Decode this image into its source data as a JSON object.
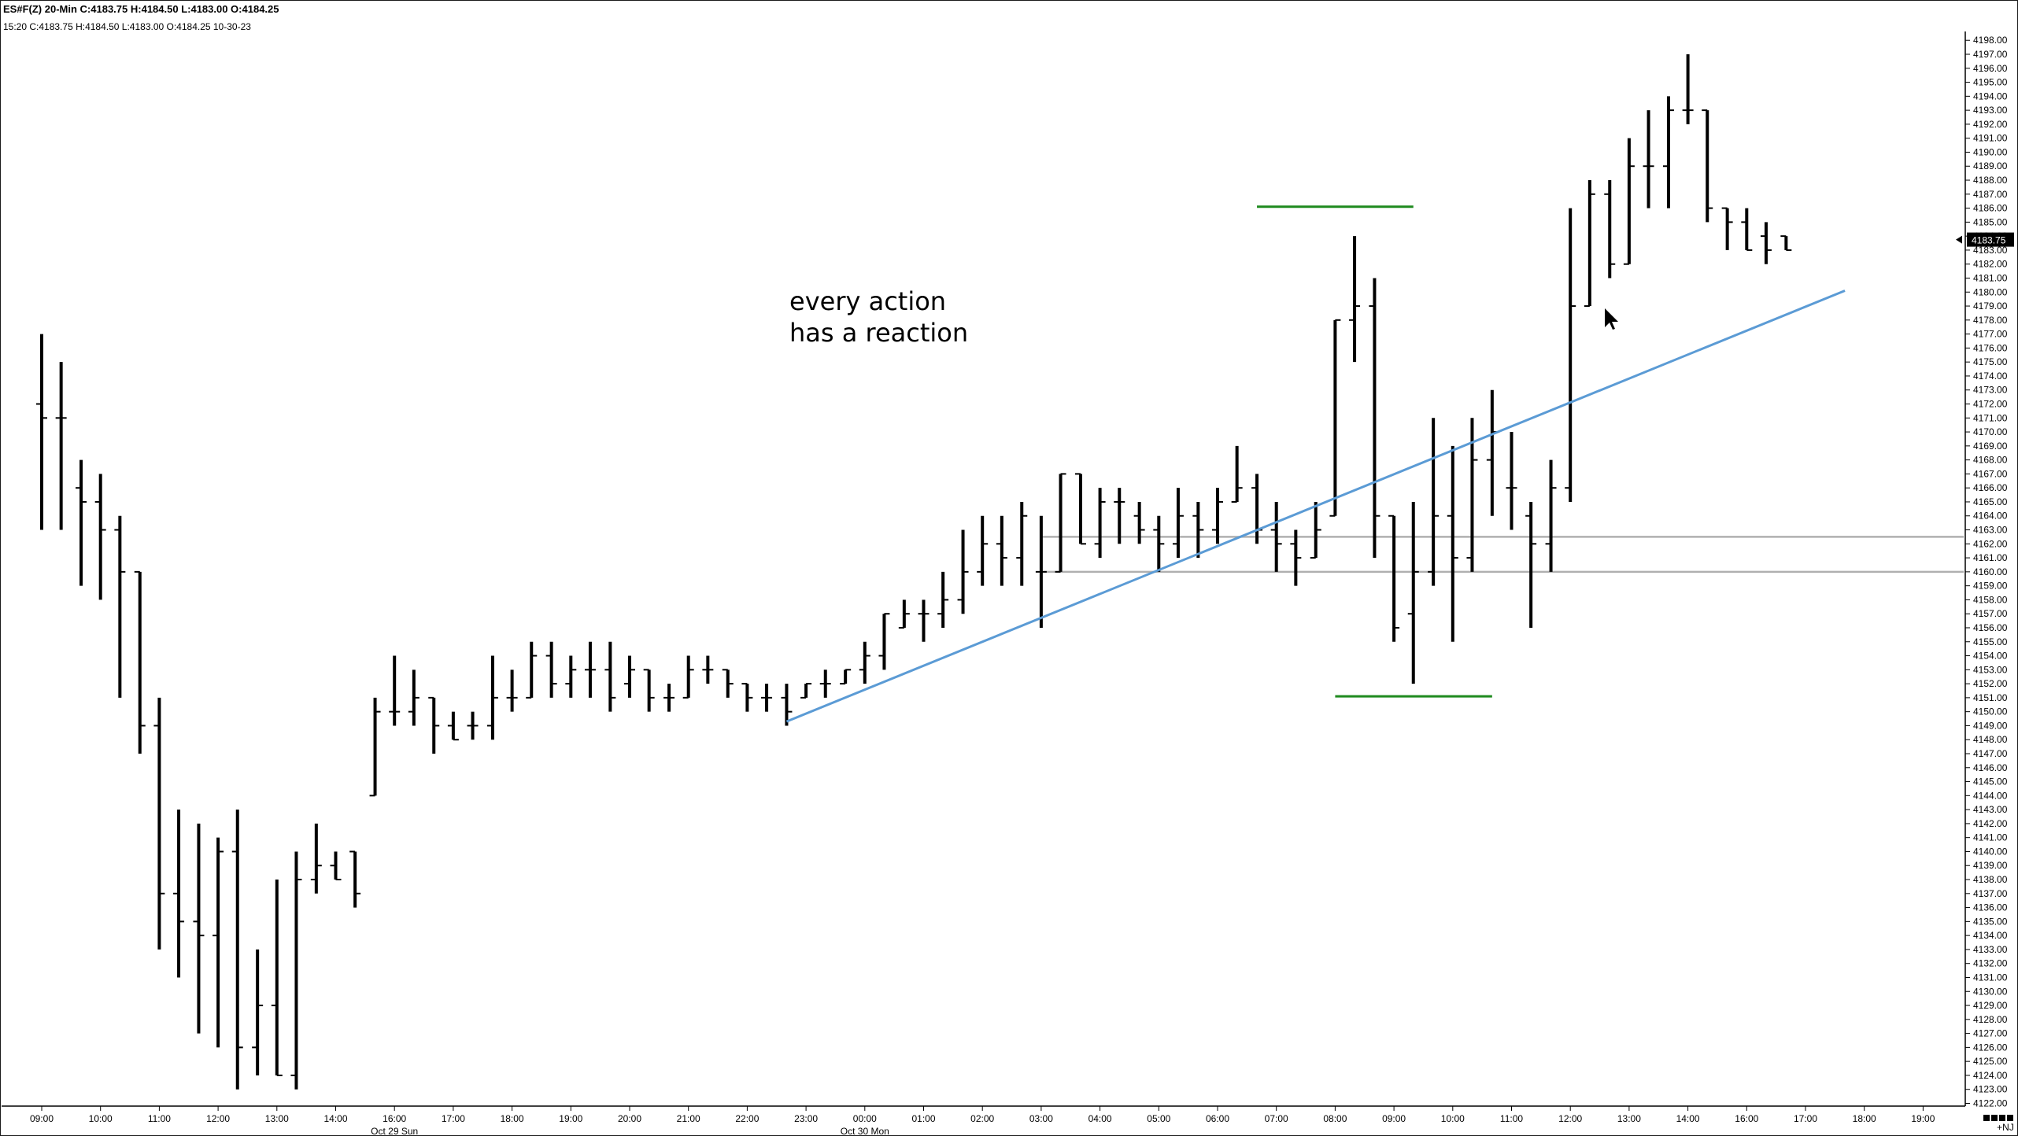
{
  "header": {
    "symbol": "ES#F(Z)",
    "interval": "20-Min",
    "summary": "C:4183.75  H:4184.50  L:4183.00  O:4184.25",
    "info": "15:20  C:4183.75  H:4184.50  L:4183.00  O:4184.25  10-30-23"
  },
  "chart_data": {
    "type": "ohlc",
    "ylim": [
      4122,
      4198
    ],
    "y_tick_step": 1,
    "current_price": "4183.75",
    "time_ticks": [
      "09:00",
      "10:00",
      "11:00",
      "12:00",
      "13:00",
      "14:00",
      "16:00",
      "17:00",
      "18:00",
      "19:00",
      "20:00",
      "21:00",
      "22:00",
      "23:00",
      "00:00",
      "01:00",
      "02:00",
      "03:00",
      "04:00",
      "05:00",
      "06:00",
      "07:00",
      "08:00",
      "09:00",
      "10:00",
      "11:00",
      "12:00",
      "13:00",
      "14:00",
      "16:00",
      "17:00",
      "18:00",
      "19:00"
    ],
    "date_labels": [
      {
        "text": "Oct 29 Sun",
        "at": "16:00"
      },
      {
        "text": "Oct 30 Mon",
        "at": "00:00"
      }
    ],
    "footer_tag": "+NJ",
    "bars": [
      {
        "t": 0.0,
        "o": 4172,
        "h": 4177,
        "l": 4163,
        "c": 4171
      },
      {
        "t": 0.33,
        "o": 4171,
        "h": 4175,
        "l": 4163,
        "c": 4171
      },
      {
        "t": 0.67,
        "o": 4166,
        "h": 4168,
        "l": 4159,
        "c": 4165
      },
      {
        "t": 1.0,
        "o": 4165,
        "h": 4167,
        "l": 4158,
        "c": 4163
      },
      {
        "t": 1.33,
        "o": 4163,
        "h": 4164,
        "l": 4151,
        "c": 4160
      },
      {
        "t": 1.67,
        "o": 4160,
        "h": 4160,
        "l": 4147,
        "c": 4149
      },
      {
        "t": 2.0,
        "o": 4149,
        "h": 4151,
        "l": 4133,
        "c": 4137
      },
      {
        "t": 2.33,
        "o": 4137,
        "h": 4143,
        "l": 4131,
        "c": 4135
      },
      {
        "t": 2.67,
        "o": 4135,
        "h": 4142,
        "l": 4127,
        "c": 4134
      },
      {
        "t": 3.0,
        "o": 4134,
        "h": 4141,
        "l": 4126,
        "c": 4140
      },
      {
        "t": 3.33,
        "o": 4140,
        "h": 4143,
        "l": 4123,
        "c": 4126
      },
      {
        "t": 3.67,
        "o": 4126,
        "h": 4133,
        "l": 4124,
        "c": 4129
      },
      {
        "t": 4.0,
        "o": 4129,
        "h": 4138,
        "l": 4124,
        "c": 4124
      },
      {
        "t": 4.33,
        "o": 4124,
        "h": 4140,
        "l": 4123,
        "c": 4138
      },
      {
        "t": 4.67,
        "o": 4138,
        "h": 4142,
        "l": 4137,
        "c": 4139
      },
      {
        "t": 5.0,
        "o": 4139,
        "h": 4140,
        "l": 4138,
        "c": 4138
      },
      {
        "t": 5.33,
        "o": 4140,
        "h": 4140,
        "l": 4136,
        "c": 4137
      },
      {
        "t": 5.67,
        "o": 4144,
        "h": 4151,
        "l": 4144,
        "c": 4150
      },
      {
        "t": 6.0,
        "o": 4150,
        "h": 4154,
        "l": 4149,
        "c": 4150
      },
      {
        "t": 6.33,
        "o": 4150,
        "h": 4153,
        "l": 4149,
        "c": 4151
      },
      {
        "t": 6.67,
        "o": 4151,
        "h": 4151,
        "l": 4147,
        "c": 4149
      },
      {
        "t": 7.0,
        "o": 4149,
        "h": 4150,
        "l": 4148,
        "c": 4148
      },
      {
        "t": 7.33,
        "o": 4149,
        "h": 4150,
        "l": 4148,
        "c": 4149
      },
      {
        "t": 7.67,
        "o": 4149,
        "h": 4154,
        "l": 4148,
        "c": 4151
      },
      {
        "t": 8.0,
        "o": 4151,
        "h": 4153,
        "l": 4150,
        "c": 4151
      },
      {
        "t": 8.33,
        "o": 4151,
        "h": 4155,
        "l": 4151,
        "c": 4154
      },
      {
        "t": 8.67,
        "o": 4154,
        "h": 4155,
        "l": 4151,
        "c": 4152
      },
      {
        "t": 9.0,
        "o": 4152,
        "h": 4154,
        "l": 4151,
        "c": 4153
      },
      {
        "t": 9.33,
        "o": 4153,
        "h": 4155,
        "l": 4151,
        "c": 4153
      },
      {
        "t": 9.67,
        "o": 4153,
        "h": 4155,
        "l": 4150,
        "c": 4151
      },
      {
        "t": 10.0,
        "o": 4152,
        "h": 4154,
        "l": 4151,
        "c": 4153
      },
      {
        "t": 10.33,
        "o": 4153,
        "h": 4153,
        "l": 4150,
        "c": 4151
      },
      {
        "t": 10.67,
        "o": 4151,
        "h": 4152,
        "l": 4150,
        "c": 4151
      },
      {
        "t": 11.0,
        "o": 4151,
        "h": 4154,
        "l": 4151,
        "c": 4153
      },
      {
        "t": 11.33,
        "o": 4153,
        "h": 4154,
        "l": 4152,
        "c": 4153
      },
      {
        "t": 11.67,
        "o": 4153,
        "h": 4153,
        "l": 4151,
        "c": 4152
      },
      {
        "t": 12.0,
        "o": 4152,
        "h": 4152,
        "l": 4150,
        "c": 4151
      },
      {
        "t": 12.33,
        "o": 4151,
        "h": 4152,
        "l": 4150,
        "c": 4151
      },
      {
        "t": 12.67,
        "o": 4151,
        "h": 4152,
        "l": 4149,
        "c": 4150
      },
      {
        "t": 13.0,
        "o": 4151,
        "h": 4152,
        "l": 4151,
        "c": 4152
      },
      {
        "t": 13.33,
        "o": 4152,
        "h": 4153,
        "l": 4151,
        "c": 4152
      },
      {
        "t": 13.67,
        "o": 4152,
        "h": 4153,
        "l": 4152,
        "c": 4153
      },
      {
        "t": 14.0,
        "o": 4153,
        "h": 4155,
        "l": 4152,
        "c": 4154
      },
      {
        "t": 14.33,
        "o": 4154,
        "h": 4157,
        "l": 4153,
        "c": 4157
      },
      {
        "t": 14.67,
        "o": 4156,
        "h": 4158,
        "l": 4156,
        "c": 4157
      },
      {
        "t": 15.0,
        "o": 4157,
        "h": 4158,
        "l": 4155,
        "c": 4157
      },
      {
        "t": 15.33,
        "o": 4157,
        "h": 4160,
        "l": 4156,
        "c": 4158
      },
      {
        "t": 15.67,
        "o": 4158,
        "h": 4163,
        "l": 4157,
        "c": 4160
      },
      {
        "t": 16.0,
        "o": 4160,
        "h": 4164,
        "l": 4159,
        "c": 4162
      },
      {
        "t": 16.33,
        "o": 4162,
        "h": 4164,
        "l": 4159,
        "c": 4161
      },
      {
        "t": 16.67,
        "o": 4161,
        "h": 4165,
        "l": 4159,
        "c": 4164
      },
      {
        "t": 17.0,
        "o": 4160,
        "h": 4164,
        "l": 4156,
        "c": 4160
      },
      {
        "t": 17.33,
        "o": 4160,
        "h": 4167,
        "l": 4160,
        "c": 4167
      },
      {
        "t": 17.67,
        "o": 4167,
        "h": 4167,
        "l": 4162,
        "c": 4162
      },
      {
        "t": 18.0,
        "o": 4162,
        "h": 4166,
        "l": 4161,
        "c": 4165
      },
      {
        "t": 18.33,
        "o": 4165,
        "h": 4166,
        "l": 4162,
        "c": 4165
      },
      {
        "t": 18.67,
        "o": 4164,
        "h": 4165,
        "l": 4162,
        "c": 4163
      },
      {
        "t": 19.0,
        "o": 4163,
        "h": 4164,
        "l": 4160,
        "c": 4162
      },
      {
        "t": 19.33,
        "o": 4162,
        "h": 4166,
        "l": 4161,
        "c": 4164
      },
      {
        "t": 19.67,
        "o": 4164,
        "h": 4165,
        "l": 4161,
        "c": 4163
      },
      {
        "t": 20.0,
        "o": 4163,
        "h": 4166,
        "l": 4162,
        "c": 4165
      },
      {
        "t": 20.33,
        "o": 4165,
        "h": 4169,
        "l": 4165,
        "c": 4166
      },
      {
        "t": 20.67,
        "o": 4166,
        "h": 4167,
        "l": 4162,
        "c": 4163
      },
      {
        "t": 21.0,
        "o": 4163,
        "h": 4165,
        "l": 4160,
        "c": 4162
      },
      {
        "t": 21.33,
        "o": 4162,
        "h": 4163,
        "l": 4159,
        "c": 4161
      },
      {
        "t": 21.67,
        "o": 4161,
        "h": 4165,
        "l": 4161,
        "c": 4163
      },
      {
        "t": 22.0,
        "o": 4164,
        "h": 4178,
        "l": 4164,
        "c": 4178
      },
      {
        "t": 22.33,
        "o": 4178,
        "h": 4184,
        "l": 4175,
        "c": 4179
      },
      {
        "t": 22.67,
        "o": 4179,
        "h": 4181,
        "l": 4161,
        "c": 4164
      },
      {
        "t": 23.0,
        "o": 4164,
        "h": 4164,
        "l": 4155,
        "c": 4156
      },
      {
        "t": 23.33,
        "o": 4157,
        "h": 4165,
        "l": 4152,
        "c": 4160
      },
      {
        "t": 23.67,
        "o": 4160,
        "h": 4171,
        "l": 4159,
        "c": 4164
      },
      {
        "t": 24.0,
        "o": 4164,
        "h": 4169,
        "l": 4155,
        "c": 4161
      },
      {
        "t": 24.33,
        "o": 4161,
        "h": 4171,
        "l": 4160,
        "c": 4168
      },
      {
        "t": 24.67,
        "o": 4168,
        "h": 4173,
        "l": 4164,
        "c": 4170
      },
      {
        "t": 25.0,
        "o": 4166,
        "h": 4170,
        "l": 4163,
        "c": 4166
      },
      {
        "t": 25.33,
        "o": 4164,
        "h": 4165,
        "l": 4156,
        "c": 4162
      },
      {
        "t": 25.67,
        "o": 4162,
        "h": 4168,
        "l": 4160,
        "c": 4166
      },
      {
        "t": 26.0,
        "o": 4166,
        "h": 4186,
        "l": 4165,
        "c": 4179
      },
      {
        "t": 26.33,
        "o": 4179,
        "h": 4188,
        "l": 4179,
        "c": 4187
      },
      {
        "t": 26.67,
        "o": 4187,
        "h": 4188,
        "l": 4181,
        "c": 4182
      },
      {
        "t": 27.0,
        "o": 4182,
        "h": 4191,
        "l": 4182,
        "c": 4189
      },
      {
        "t": 27.33,
        "o": 4189,
        "h": 4193,
        "l": 4186,
        "c": 4189
      },
      {
        "t": 27.67,
        "o": 4189,
        "h": 4194,
        "l": 4186,
        "c": 4193
      },
      {
        "t": 28.0,
        "o": 4193,
        "h": 4197,
        "l": 4192,
        "c": 4193
      },
      {
        "t": 28.33,
        "o": 4193,
        "h": 4193,
        "l": 4185,
        "c": 4186
      },
      {
        "t": 28.67,
        "o": 4186,
        "h": 4186,
        "l": 4183,
        "c": 4185
      },
      {
        "t": 29.0,
        "o": 4185,
        "h": 4186,
        "l": 4183,
        "c": 4183
      },
      {
        "t": 29.33,
        "o": 4184,
        "h": 4185,
        "l": 4182,
        "c": 4183
      },
      {
        "t": 29.67,
        "o": 4184,
        "h": 4184,
        "l": 4183,
        "c": 4183
      }
    ],
    "annotations": {
      "text_lines": [
        "every action",
        "has a reaction"
      ],
      "trend_line": {
        "from": {
          "t": 12.67,
          "price": 4149.3
        },
        "to": {
          "t": 30.67,
          "price": 4180.1
        },
        "color": "#5b9bd5"
      },
      "zone_lines": [
        {
          "from_t": 17.0,
          "price": 4162.5,
          "color": "#b0b0b0"
        },
        {
          "from_t": 17.0,
          "price": 4160.0,
          "color": "#b0b0b0"
        }
      ],
      "green_lines": [
        {
          "from_t": 20.67,
          "to_t": 23.33,
          "price": 4186.1,
          "color": "#1e8a1e"
        },
        {
          "from_t": 22.0,
          "to_t": 24.67,
          "price": 4151.1,
          "color": "#1e8a1e"
        }
      ]
    }
  }
}
